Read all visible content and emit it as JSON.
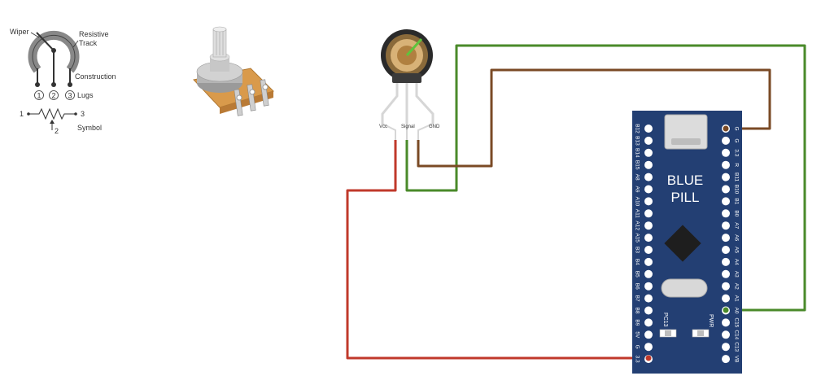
{
  "pot_diagram": {
    "labels": {
      "wiper": "Wiper",
      "resistive": "Resistive",
      "track": "Track",
      "construction": "Construction",
      "lugs": "Lugs",
      "symbol": "Symbol"
    },
    "lug_numbers": [
      "1",
      "2",
      "3"
    ],
    "symbol_pins": [
      "1",
      "3",
      "2"
    ]
  },
  "pot_component": {
    "pins": [
      "Vcc",
      "Signal",
      "GND"
    ]
  },
  "board": {
    "title_line1": "BLUE",
    "title_line2": "PILL",
    "led_labels": [
      "PC13",
      "PWR"
    ],
    "left_pins": [
      "B12",
      "B13",
      "B14",
      "B15",
      "A8",
      "A9",
      "A10",
      "A11",
      "A12",
      "A15",
      "B3",
      "B4",
      "B5",
      "B6",
      "B7",
      "B8",
      "B9",
      "5V",
      "G",
      "3.3"
    ],
    "right_pins": [
      "G",
      "G",
      "3.3",
      "R",
      "B11",
      "B10",
      "B1",
      "B0",
      "A7",
      "A6",
      "A5",
      "A4",
      "A3",
      "A2",
      "A1",
      "A0",
      "C15",
      "C14",
      "C13",
      "VB"
    ],
    "colors": {
      "pcb": "#233f73",
      "pad": "#ffffff",
      "text": "#ffffff"
    }
  },
  "wires": {
    "colors": {
      "vcc": "#c0392b",
      "signal": "#4a8a2a",
      "gnd": "#7a4a25"
    }
  }
}
